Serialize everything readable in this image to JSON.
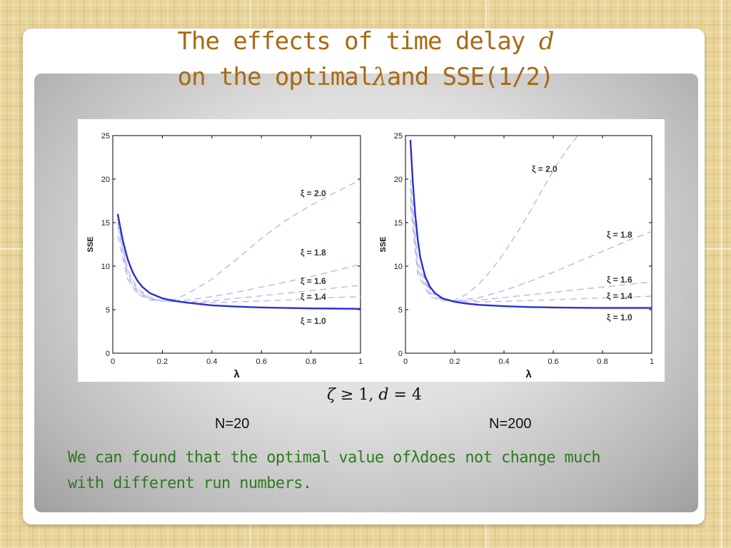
{
  "slide": {
    "title_line1": "The effects of time delay",
    "title_var": "d",
    "title_line2a": "on the optimal",
    "lambda": "λ",
    "title_line2b": "and SSE(1/2)",
    "condition_zeta": "ζ",
    "condition_rest": "≥ 1,",
    "condition_d": "d",
    "condition_eq": "= 4",
    "note_part1": "We can found that the optimal value of",
    "note_part2": "does not change much",
    "note_line2": "with different run numbers."
  },
  "chart_data": [
    {
      "type": "line",
      "sample_label": "N=20",
      "xlabel": "λ",
      "ylabel": "SSE",
      "xlim": [
        0,
        1
      ],
      "ylim": [
        0,
        25
      ],
      "xticks": [
        "0",
        "0.2",
        "0.4",
        "0.6",
        "0.8",
        "1"
      ],
      "yticks": [
        "0",
        "5",
        "10",
        "15",
        "20",
        "25"
      ],
      "series": [
        {
          "name": "ξ = 2.0",
          "style": "dashed",
          "color": "#b9b9e6",
          "x": [
            0.02,
            0.06,
            0.1,
            0.15,
            0.2,
            0.25,
            0.3,
            0.4,
            0.5,
            0.6,
            0.7,
            0.8,
            0.9,
            1.0
          ],
          "y": [
            13.5,
            8.5,
            6.8,
            6.1,
            6.0,
            6.2,
            6.8,
            8.5,
            10.8,
            13.2,
            15.3,
            17.0,
            18.5,
            19.9
          ]
        },
        {
          "name": "ξ = 1.8",
          "style": "dashed",
          "color": "#b9b9e6",
          "x": [
            0.02,
            0.06,
            0.1,
            0.15,
            0.2,
            0.3,
            0.4,
            0.5,
            0.6,
            0.7,
            0.8,
            0.9,
            1.0
          ],
          "y": [
            14.5,
            8.8,
            7.0,
            6.2,
            6.0,
            6.1,
            6.5,
            7.0,
            7.6,
            8.2,
            8.8,
            9.5,
            10.2
          ]
        },
        {
          "name": "ξ = 1.6",
          "style": "dashed",
          "color": "#b9b9e6",
          "x": [
            0.02,
            0.06,
            0.1,
            0.15,
            0.2,
            0.3,
            0.4,
            0.5,
            0.6,
            0.7,
            0.8,
            0.9,
            1.0
          ],
          "y": [
            15.0,
            9.2,
            7.2,
            6.3,
            6.0,
            5.9,
            6.0,
            6.3,
            6.6,
            6.9,
            7.2,
            7.5,
            7.8
          ]
        },
        {
          "name": "ξ = 1.4",
          "style": "dashed",
          "color": "#b9b9e6",
          "x": [
            0.02,
            0.06,
            0.1,
            0.15,
            0.2,
            0.3,
            0.4,
            0.5,
            0.6,
            0.7,
            0.8,
            0.9,
            1.0
          ],
          "y": [
            15.5,
            9.6,
            7.4,
            6.4,
            6.0,
            5.8,
            5.8,
            5.9,
            6.0,
            6.1,
            6.3,
            6.4,
            6.5
          ]
        },
        {
          "name": "ξ = 1.0",
          "style": "solid",
          "color": "#2a2fcf",
          "x": [
            0.02,
            0.04,
            0.06,
            0.08,
            0.1,
            0.12,
            0.15,
            0.2,
            0.25,
            0.3,
            0.4,
            0.5,
            0.6,
            0.7,
            0.8,
            0.9,
            1.0
          ],
          "y": [
            16.0,
            13.0,
            10.8,
            9.3,
            8.3,
            7.6,
            6.9,
            6.3,
            6.0,
            5.8,
            5.5,
            5.35,
            5.25,
            5.2,
            5.15,
            5.12,
            5.1
          ]
        }
      ]
    },
    {
      "type": "line",
      "sample_label": "N=200",
      "xlabel": "λ",
      "ylabel": "SSE",
      "xlim": [
        0,
        1
      ],
      "ylim": [
        0,
        25
      ],
      "xticks": [
        "0",
        "0.2",
        "0.4",
        "0.6",
        "0.8",
        "1"
      ],
      "yticks": [
        "0",
        "5",
        "10",
        "15",
        "20",
        "25"
      ],
      "series": [
        {
          "name": "ξ = 2.0",
          "style": "dashed",
          "color": "#b9b9e6",
          "x": [
            0.02,
            0.05,
            0.1,
            0.15,
            0.2,
            0.25,
            0.3,
            0.35,
            0.4,
            0.45,
            0.5,
            0.55,
            0.6,
            0.65,
            0.7
          ],
          "y": [
            17.0,
            9.0,
            6.5,
            6.0,
            6.1,
            6.8,
            8.0,
            9.6,
            11.5,
            13.7,
            16.0,
            18.5,
            21.0,
            23.2,
            25.0
          ]
        },
        {
          "name": "ξ = 1.8",
          "style": "dashed",
          "color": "#b9b9e6",
          "x": [
            0.02,
            0.05,
            0.1,
            0.15,
            0.2,
            0.3,
            0.4,
            0.5,
            0.6,
            0.7,
            0.8,
            0.9,
            1.0
          ],
          "y": [
            18.0,
            9.5,
            6.8,
            6.1,
            6.0,
            6.4,
            7.2,
            8.2,
            9.3,
            10.5,
            11.7,
            12.9,
            14.0
          ]
        },
        {
          "name": "ξ = 1.6",
          "style": "dashed",
          "color": "#b9b9e6",
          "x": [
            0.02,
            0.05,
            0.1,
            0.15,
            0.2,
            0.3,
            0.4,
            0.5,
            0.6,
            0.7,
            0.8,
            0.9,
            1.0
          ],
          "y": [
            19.0,
            10.0,
            7.0,
            6.2,
            6.0,
            6.1,
            6.4,
            6.7,
            7.0,
            7.3,
            7.6,
            7.9,
            8.2
          ]
        },
        {
          "name": "ξ = 1.4",
          "style": "dashed",
          "color": "#b9b9e6",
          "x": [
            0.02,
            0.05,
            0.1,
            0.15,
            0.2,
            0.3,
            0.4,
            0.5,
            0.6,
            0.7,
            0.8,
            0.9,
            1.0
          ],
          "y": [
            20.0,
            10.5,
            7.2,
            6.3,
            6.0,
            5.9,
            5.95,
            6.05,
            6.15,
            6.25,
            6.35,
            6.45,
            6.55
          ]
        },
        {
          "name": "ξ = 1.0",
          "style": "solid",
          "color": "#2a2fcf",
          "x": [
            0.02,
            0.03,
            0.04,
            0.05,
            0.06,
            0.08,
            0.1,
            0.12,
            0.15,
            0.2,
            0.25,
            0.3,
            0.4,
            0.5,
            0.6,
            0.7,
            0.8,
            0.9,
            1.0
          ],
          "y": [
            24.5,
            19.5,
            15.8,
            13.0,
            11.0,
            8.8,
            7.6,
            6.9,
            6.3,
            5.9,
            5.7,
            5.55,
            5.4,
            5.3,
            5.25,
            5.22,
            5.2,
            5.2,
            5.2
          ]
        }
      ]
    }
  ]
}
